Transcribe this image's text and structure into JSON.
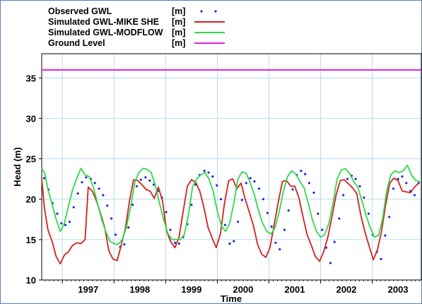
{
  "chart_data": {
    "type": "line",
    "xlabel": "Time",
    "ylabel": "Head (m)",
    "xlim": [
      1996.6,
      2003.95
    ],
    "ylim": [
      10,
      38
    ],
    "grid": true,
    "legend_position": "top-left",
    "y_ticks": [
      "10",
      "15",
      "20",
      "25",
      "30",
      "35"
    ],
    "x_ticks": [
      "1997",
      "1998",
      "1999",
      "2000",
      "2001",
      "2002",
      "2003"
    ],
    "series": [
      {
        "name": "Observed GWL",
        "unit": "[m]",
        "style": "dots",
        "color": "#1f2ad6",
        "x": [
          1996.65,
          1996.73,
          1996.81,
          1996.9,
          1996.98,
          1997.06,
          1997.14,
          1997.22,
          1997.3,
          1997.38,
          1997.46,
          1997.55,
          1997.63,
          1997.71,
          1997.79,
          1997.87,
          1997.95,
          1998.03,
          1998.12,
          1998.2,
          1998.28,
          1998.36,
          1998.44,
          1998.52,
          1998.61,
          1998.69,
          1998.77,
          1998.85,
          1998.93,
          1999.01,
          1999.09,
          1999.18,
          1999.26,
          1999.34,
          1999.42,
          1999.5,
          1999.58,
          1999.66,
          1999.75,
          1999.83,
          1999.91,
          1999.99,
          2000.07,
          2000.15,
          2000.24,
          2000.32,
          2000.4,
          2000.48,
          2000.56,
          2000.64,
          2000.72,
          2000.81,
          2000.89,
          2000.97,
          2001.05,
          2001.13,
          2001.21,
          2001.3,
          2001.38,
          2001.46,
          2001.54,
          2001.62,
          2001.7,
          2001.78,
          2001.87,
          2001.95,
          2002.03,
          2002.11,
          2002.19,
          2002.27,
          2002.36,
          2002.44,
          2002.52,
          2002.6,
          2002.68,
          2002.76,
          2002.84,
          2002.93,
          2003.01,
          2003.09,
          2003.17,
          2003.25,
          2003.33,
          2003.41,
          2003.5,
          2003.58,
          2003.66,
          2003.74,
          2003.82,
          2003.9
        ],
        "values": [
          22.6,
          21.2,
          19.5,
          18.2,
          17.0,
          16.8,
          17.2,
          19.0,
          20.7,
          22.1,
          22.7,
          22.5,
          22.0,
          21.3,
          20.5,
          19.2,
          17.6,
          15.6,
          14.1,
          14.4,
          16.5,
          19.3,
          21.6,
          22.4,
          22.7,
          22.3,
          21.8,
          21.0,
          20.2,
          18.4,
          16.2,
          14.6,
          14.5,
          15.3,
          16.9,
          19.3,
          21.8,
          23.0,
          23.5,
          23.3,
          22.8,
          21.7,
          20.0,
          16.8,
          14.5,
          14.8,
          17.2,
          19.9,
          22.0,
          22.6,
          22.2,
          21.3,
          20.0,
          18.3,
          16.6,
          14.6,
          13.8,
          16.2,
          18.6,
          21.2,
          23.0,
          23.5,
          23.1,
          22.0,
          20.8,
          18.2,
          16.2,
          14.0,
          12.1,
          14.7,
          17.6,
          20.5,
          22.5,
          22.9,
          22.5,
          21.6,
          20.2,
          18.2,
          15.6,
          13.5,
          12.6,
          15.5,
          17.8,
          21.3,
          22.5,
          22.8,
          22.0,
          21.0,
          20.5,
          22.0
        ]
      },
      {
        "name": "Simulated GWL-MIKE SHE",
        "unit": "[m]",
        "style": "line",
        "color": "#d32020",
        "x": [
          1996.6,
          1996.65,
          1996.72,
          1996.8,
          1996.88,
          1996.96,
          1997.04,
          1997.12,
          1997.2,
          1997.28,
          1997.36,
          1997.44,
          1997.5,
          1997.58,
          1997.66,
          1997.74,
          1997.82,
          1997.9,
          1997.98,
          1998.06,
          1998.14,
          1998.22,
          1998.3,
          1998.38,
          1998.46,
          1998.54,
          1998.62,
          1998.7,
          1998.78,
          1998.86,
          1998.94,
          1999.02,
          1999.1,
          1999.18,
          1999.26,
          1999.34,
          1999.42,
          1999.5,
          1999.58,
          1999.66,
          1999.74,
          1999.82,
          1999.9,
          1999.98,
          2000.06,
          2000.14,
          2000.22,
          2000.3,
          2000.38,
          2000.46,
          2000.54,
          2000.62,
          2000.7,
          2000.78,
          2000.86,
          2000.94,
          2001.02,
          2001.1,
          2001.18,
          2001.26,
          2001.34,
          2001.42,
          2001.5,
          2001.58,
          2001.66,
          2001.74,
          2001.82,
          2001.9,
          2001.98,
          2002.06,
          2002.14,
          2002.22,
          2002.3,
          2002.38,
          2002.46,
          2002.54,
          2002.62,
          2002.7,
          2002.78,
          2002.86,
          2002.94,
          2003.02,
          2003.1,
          2003.18,
          2003.26,
          2003.34,
          2003.42,
          2003.5,
          2003.58,
          2003.66,
          2003.74,
          2003.82,
          2003.9
        ],
        "values": [
          22.6,
          19.0,
          16.2,
          14.8,
          12.9,
          12.0,
          13.1,
          13.5,
          14.3,
          14.6,
          14.5,
          15.0,
          21.5,
          21.0,
          19.8,
          18.2,
          16.5,
          13.6,
          12.6,
          12.4,
          14.3,
          16.4,
          19.8,
          22.4,
          22.3,
          21.8,
          21.2,
          21.0,
          20.1,
          21.5,
          19.7,
          16.0,
          14.7,
          14.0,
          15.3,
          18.5,
          21.6,
          22.4,
          22.1,
          21.0,
          19.0,
          16.5,
          15.2,
          14.0,
          15.7,
          19.5,
          22.3,
          22.5,
          21.3,
          22.0,
          20.0,
          18.4,
          16.7,
          14.4,
          13.2,
          12.8,
          14.0,
          16.8,
          19.6,
          22.2,
          22.3,
          21.6,
          21.6,
          20.2,
          17.8,
          15.6,
          14.3,
          12.9,
          12.3,
          13.5,
          15.3,
          17.8,
          20.5,
          22.3,
          22.4,
          21.9,
          21.4,
          20.7,
          18.0,
          15.9,
          14.2,
          12.5,
          13.7,
          16.0,
          19.3,
          22.0,
          22.6,
          22.3,
          21.0,
          20.9,
          20.8,
          21.5,
          22.0
        ]
      },
      {
        "name": "Simulated GWL-MODFLOW",
        "unit": "[m]",
        "style": "line",
        "color": "#2fd94a",
        "x": [
          1996.6,
          1996.66,
          1996.72,
          1996.8,
          1996.88,
          1996.96,
          1997.04,
          1997.12,
          1997.2,
          1997.28,
          1997.36,
          1997.44,
          1997.52,
          1997.6,
          1997.68,
          1997.76,
          1997.84,
          1997.92,
          1998.0,
          1998.08,
          1998.16,
          1998.24,
          1998.32,
          1998.4,
          1998.48,
          1998.56,
          1998.64,
          1998.72,
          1998.8,
          1998.88,
          1998.96,
          1999.04,
          1999.12,
          1999.2,
          1999.28,
          1999.36,
          1999.44,
          1999.52,
          1999.6,
          1999.68,
          1999.76,
          1999.84,
          1999.92,
          2000.0,
          2000.08,
          2000.16,
          2000.24,
          2000.32,
          2000.4,
          2000.48,
          2000.56,
          2000.64,
          2000.72,
          2000.8,
          2000.88,
          2000.96,
          2001.04,
          2001.12,
          2001.2,
          2001.28,
          2001.36,
          2001.44,
          2001.52,
          2001.6,
          2001.68,
          2001.76,
          2001.84,
          2001.92,
          2002.0,
          2002.08,
          2002.16,
          2002.24,
          2002.32,
          2002.4,
          2002.48,
          2002.56,
          2002.64,
          2002.72,
          2002.8,
          2002.88,
          2002.96,
          2003.04,
          2003.12,
          2003.2,
          2003.28,
          2003.36,
          2003.44,
          2003.52,
          2003.6,
          2003.68,
          2003.76,
          2003.84,
          2003.92
        ],
        "values": [
          23.8,
          23.2,
          21.2,
          19.4,
          17.5,
          16.0,
          17.0,
          19.2,
          21.2,
          22.6,
          23.8,
          23.0,
          22.8,
          21.5,
          19.5,
          17.5,
          16.0,
          14.8,
          14.5,
          14.4,
          15.0,
          16.5,
          19.0,
          22.0,
          23.3,
          23.8,
          23.7,
          23.3,
          21.7,
          19.5,
          17.5,
          15.8,
          15.0,
          15.0,
          15.0,
          15.6,
          18.0,
          21.5,
          22.5,
          23.0,
          23.3,
          22.5,
          21.0,
          18.5,
          16.7,
          16.0,
          17.0,
          19.5,
          22.5,
          23.4,
          23.2,
          22.0,
          20.5,
          18.5,
          17.0,
          16.0,
          15.7,
          16.5,
          18.5,
          21.0,
          22.8,
          23.5,
          23.1,
          22.2,
          21.4,
          19.5,
          17.5,
          16.0,
          15.3,
          15.6,
          17.0,
          19.5,
          22.5,
          23.6,
          23.8,
          23.2,
          22.2,
          21.5,
          19.8,
          18.0,
          16.5,
          15.3,
          15.5,
          17.5,
          21.0,
          23.0,
          23.5,
          23.3,
          23.5,
          24.2,
          23.0,
          22.3,
          22.2
        ]
      },
      {
        "name": "Ground Level",
        "unit": "[m]",
        "style": "line",
        "color": "#e020e0",
        "x": [
          1996.6,
          2003.95
        ],
        "values": [
          36.0,
          36.0
        ]
      }
    ]
  }
}
